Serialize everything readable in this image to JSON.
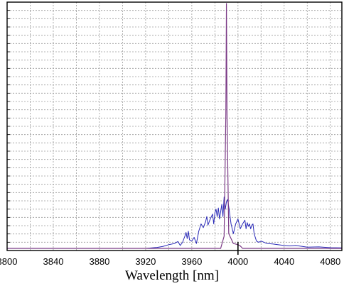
{
  "chart_data": {
    "type": "line",
    "title": "",
    "xlabel": "Wavelength [nm]",
    "ylabel": "",
    "xlim": [
      3800,
      4090
    ],
    "ylim": [
      0,
      1.0
    ],
    "x_ticks": [
      3800,
      3840,
      3880,
      3920,
      3960,
      4000,
      4040,
      4080
    ],
    "x_tick_labels": [
      "3800",
      "3840",
      "3880",
      "3920",
      "3960",
      "4000",
      "4040",
      "4080"
    ],
    "x_marker": 4000,
    "grid": true,
    "legend": "none",
    "series": [
      {
        "color": "#2a2ab8",
        "x": [
          3800,
          3920,
          3930,
          3935,
          3940,
          3945,
          3948,
          3950,
          3952,
          3954,
          3955,
          3956,
          3957,
          3958,
          3960,
          3962,
          3964,
          3966,
          3968,
          3970,
          3972,
          3973,
          3974,
          3976,
          3978,
          3979,
          3980,
          3981,
          3982,
          3983,
          3984,
          3985,
          3986,
          3987,
          3988,
          3989,
          3990,
          3991,
          3992,
          3994,
          3996,
          3998,
          4000,
          4002,
          4004,
          4006,
          4007,
          4008,
          4009,
          4010,
          4011,
          4012,
          4013,
          4014,
          4015,
          4016,
          4018,
          4020,
          4025,
          4030,
          4035,
          4040,
          4045,
          4050,
          4060,
          4070,
          4080,
          4090
        ],
        "values": [
          0,
          0,
          0.004,
          0.008,
          0.015,
          0.02,
          0.028,
          0.012,
          0.025,
          0.05,
          0.065,
          0.04,
          0.07,
          0.035,
          0.03,
          0.045,
          0.02,
          0.07,
          0.1,
          0.085,
          0.11,
          0.13,
          0.095,
          0.12,
          0.14,
          0.1,
          0.145,
          0.16,
          0.13,
          0.165,
          0.12,
          0.15,
          0.18,
          0.13,
          0.21,
          0.16,
          0.19,
          0.2,
          0.17,
          0.1,
          0.06,
          0.1,
          0.12,
          0.08,
          0.1,
          0.115,
          0.08,
          0.105,
          0.09,
          0.1,
          0.08,
          0.095,
          0.1,
          0.06,
          0.045,
          0.03,
          0.025,
          0.03,
          0.02,
          0.018,
          0.015,
          0.012,
          0.01,
          0.012,
          0.005,
          0.006,
          0.003,
          0.002
        ]
      },
      {
        "color": "#7b3a86",
        "x": [
          3800,
          3985,
          3988,
          3989.5,
          3990,
          3990.5,
          3992,
          3996,
          4000,
          4002,
          4004,
          4090
        ],
        "values": [
          0,
          0,
          0.05,
          0.55,
          1.0,
          0.55,
          0.06,
          0.02,
          0.015,
          0.01,
          0,
          0
        ]
      }
    ]
  }
}
